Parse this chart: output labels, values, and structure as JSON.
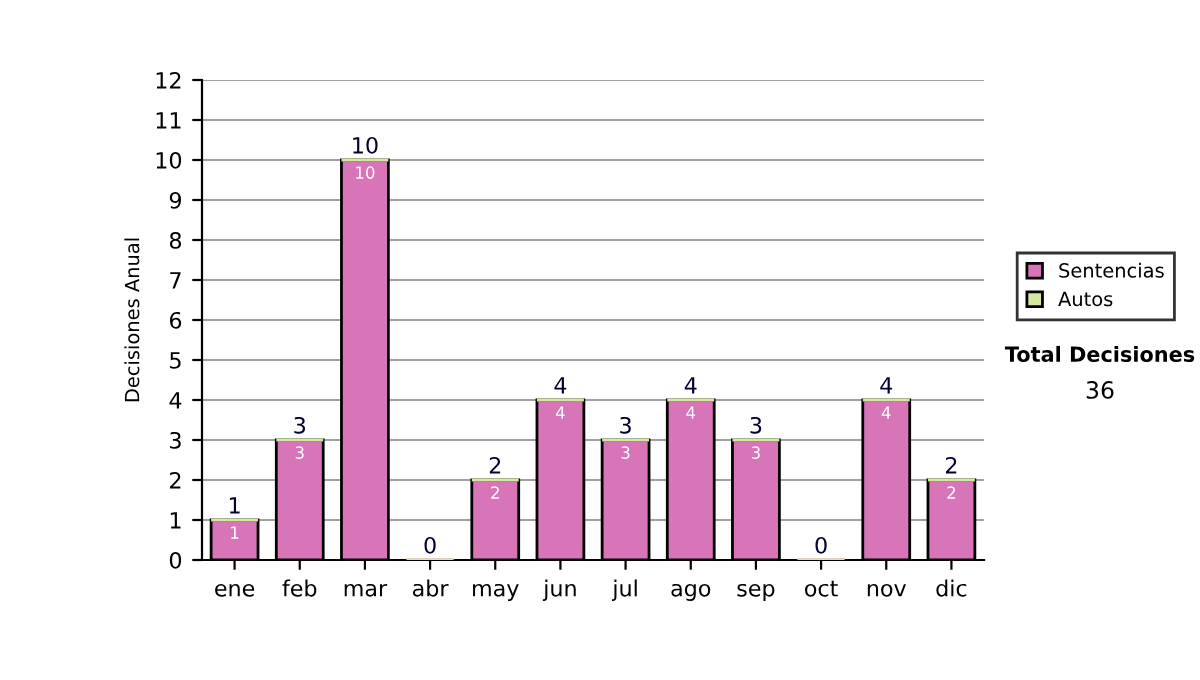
{
  "chart_data": {
    "type": "bar",
    "stacked": true,
    "ylabel": "Decisiones Anual",
    "categories": [
      "ene",
      "feb",
      "mar",
      "abr",
      "may",
      "jun",
      "jul",
      "ago",
      "sep",
      "oct",
      "nov",
      "dic"
    ],
    "series": [
      {
        "name": "Sentencias",
        "color": "#d874b8",
        "values": [
          1,
          3,
          10,
          0,
          2,
          4,
          3,
          4,
          3,
          0,
          4,
          2
        ],
        "value_labels": [
          "1",
          "3",
          "10",
          null,
          "2",
          "4",
          "3",
          "4",
          "3",
          null,
          "4",
          "2"
        ]
      },
      {
        "name": "Autos",
        "color": "#d4e8a0",
        "values": [
          0,
          0,
          0,
          0,
          0,
          0,
          0,
          0,
          0,
          0,
          0,
          0
        ]
      }
    ],
    "totals": [
      "1",
      "3",
      "10",
      "0",
      "2",
      "4",
      "3",
      "4",
      "3",
      "0",
      "4",
      "2"
    ],
    "ylim": [
      0,
      12
    ],
    "yticks": [
      0,
      1,
      2,
      3,
      4,
      5,
      6,
      7,
      8,
      9,
      10,
      11,
      12
    ],
    "grid": "y",
    "legend": "right",
    "annotations": [
      "Total Decisiones",
      "36"
    ]
  }
}
